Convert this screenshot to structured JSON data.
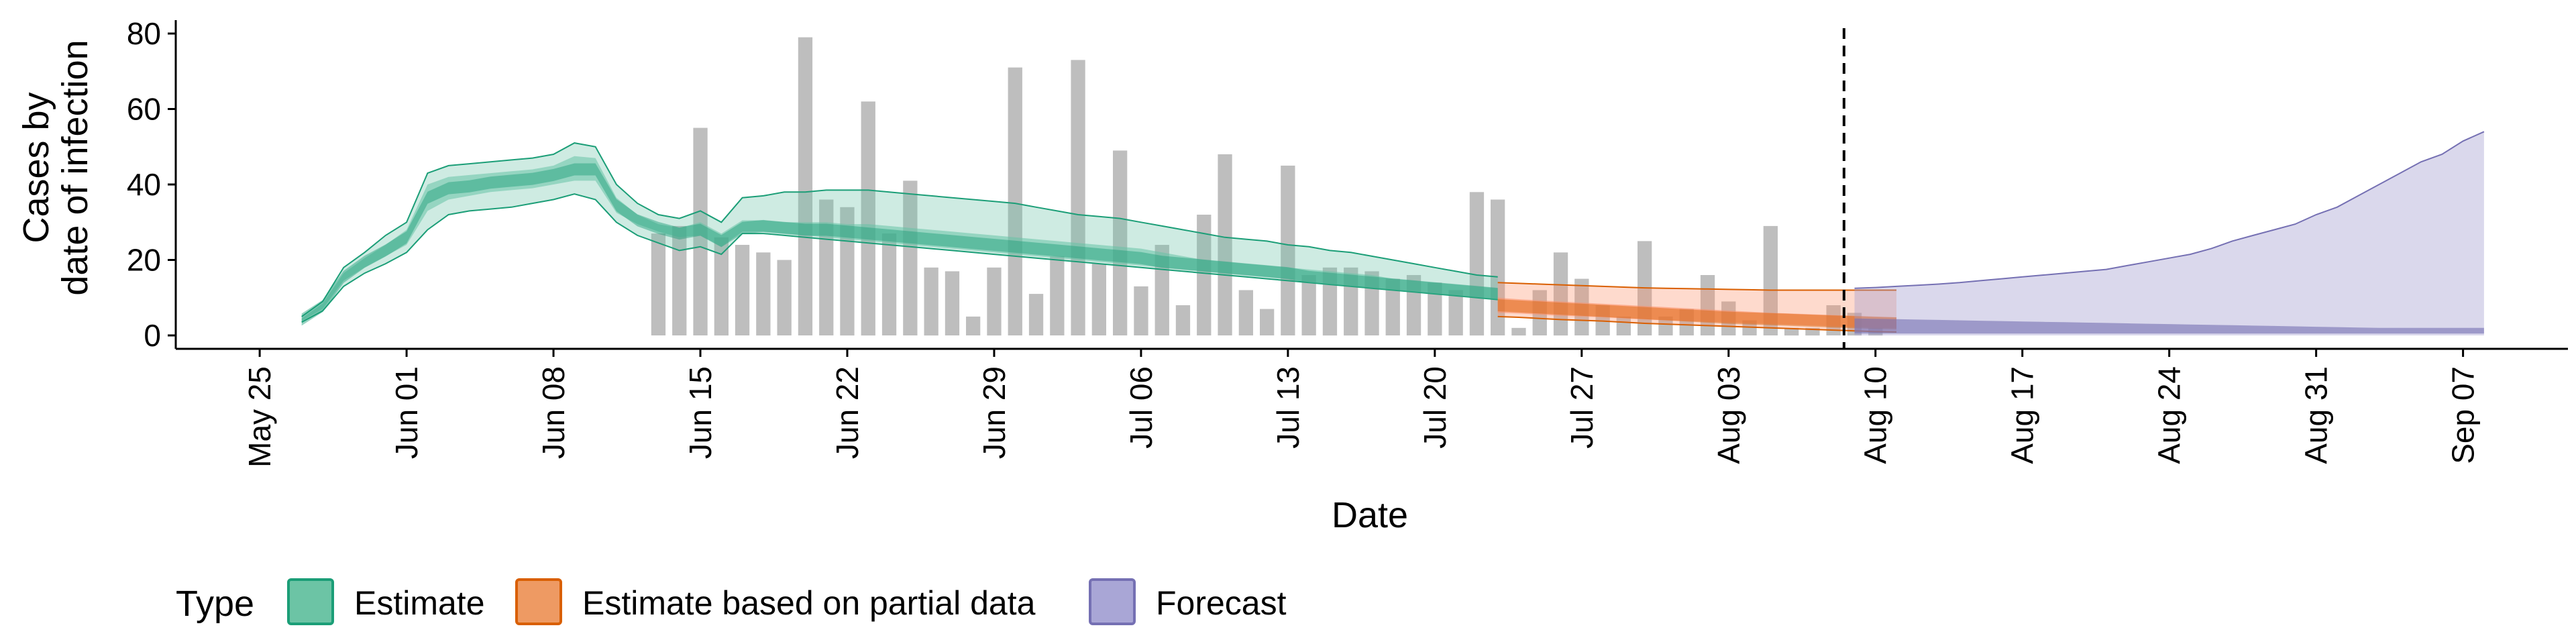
{
  "chart_data": {
    "type": "bar+area",
    "xlabel": "Date",
    "ylabel": [
      "Cases by",
      "date of infection"
    ],
    "ylim": [
      0,
      80
    ],
    "yticks": [
      0,
      20,
      40,
      60,
      80
    ],
    "xlim": [
      "2020-05-21",
      "2020-09-12"
    ],
    "xticks": [
      "2020-05-25",
      "2020-06-01",
      "2020-06-08",
      "2020-06-15",
      "2020-06-22",
      "2020-06-29",
      "2020-07-06",
      "2020-07-13",
      "2020-07-20",
      "2020-07-27",
      "2020-08-03",
      "2020-08-10",
      "2020-08-17",
      "2020-08-24",
      "2020-08-31",
      "2020-09-07"
    ],
    "xtick_labels": [
      "May 25",
      "Jun 01",
      "Jun 08",
      "Jun 15",
      "Jun 22",
      "Jun 29",
      "Jul 06",
      "Jul 13",
      "Jul 20",
      "Jul 27",
      "Aug 03",
      "Aug 10",
      "Aug 17",
      "Aug 24",
      "Aug 31",
      "Sep 07"
    ],
    "forecast_boundary": "2020-08-08",
    "grid": false,
    "legend": {
      "title": "Type",
      "placement": "bottom",
      "entries": [
        "Estimate",
        "Estimate based on partial data",
        "Forecast"
      ]
    },
    "bars": {
      "color": "#bebebe",
      "start_date": "2020-06-13",
      "values": [
        27,
        29,
        55,
        26,
        24,
        22,
        20,
        79,
        36,
        34,
        62,
        27,
        41,
        18,
        17,
        5,
        18,
        71,
        11,
        21,
        73,
        19,
        49,
        13,
        24,
        8,
        32,
        48,
        12,
        7,
        45,
        16,
        18,
        18,
        17,
        15,
        16,
        14,
        12,
        38,
        36,
        2,
        12,
        22,
        15,
        8,
        5,
        25,
        5,
        7,
        16,
        9,
        4,
        29,
        2,
        2,
        8,
        6,
        2
      ]
    },
    "series": [
      {
        "name": "Estimate",
        "color": "#1b9e77",
        "fill": "#66c2a5",
        "x_start": "2020-05-27",
        "outer_lower": [
          3.5,
          6.5,
          13,
          16.5,
          19,
          22,
          28,
          32,
          33,
          33.5,
          34,
          35,
          36,
          37.5,
          36,
          30,
          26.5,
          24.5,
          22.5,
          23.5,
          21.5,
          27,
          27,
          26.5,
          26,
          25.5,
          25,
          24.5,
          24,
          23.5,
          23,
          22.5,
          22,
          21.5,
          21,
          20.5,
          20,
          19.5,
          19,
          18.5,
          18,
          17.5,
          17,
          16.5,
          16,
          15.5,
          15,
          14.5,
          14,
          13.5,
          13,
          12.5,
          12,
          11.5,
          11,
          10.5,
          10,
          9.5
        ],
        "outer_upper": [
          5,
          9,
          18,
          22,
          26.5,
          30,
          43,
          45,
          45.5,
          46,
          46.5,
          47,
          48,
          51,
          50,
          40,
          35,
          32,
          31,
          33,
          30,
          36.5,
          37,
          38,
          38,
          38.5,
          38.5,
          38.5,
          38,
          37.5,
          37,
          36.5,
          36,
          35.5,
          35,
          34,
          33,
          32,
          31.5,
          31,
          30,
          29,
          28,
          27,
          26,
          25.5,
          25,
          24,
          23.5,
          22.5,
          22,
          21,
          20,
          19,
          18,
          17,
          16,
          15.5
        ],
        "inner_lower": [
          3.8,
          7,
          14.5,
          18,
          21,
          24,
          33,
          36,
          37,
          38,
          38.5,
          39,
          40,
          41,
          41,
          32.5,
          29.5,
          27.5,
          26,
          26.5,
          23.5,
          27.5,
          27.5,
          27,
          26.5,
          26,
          25.5,
          25,
          24.5,
          24,
          23.5,
          23,
          22.5,
          22,
          21.5,
          21,
          20.5,
          20,
          19.5,
          19,
          18.5,
          18,
          17.5,
          17,
          16.5,
          16,
          15.5,
          15,
          14,
          13.5,
          13,
          12.5,
          12,
          11.5,
          11,
          10.5,
          10,
          9.5
        ],
        "inner_upper": [
          4.5,
          8.5,
          16.5,
          20.5,
          24,
          28,
          40,
          42,
          42.5,
          43,
          43.5,
          44,
          45,
          47.5,
          47,
          36.5,
          32,
          29.5,
          28.5,
          30,
          27,
          30.5,
          30.5,
          30,
          30,
          30,
          29.5,
          29.5,
          29,
          28.5,
          28,
          27.5,
          27,
          26.5,
          26,
          25.5,
          25,
          24.5,
          24,
          23.5,
          23,
          22,
          21,
          20,
          19.5,
          19,
          18.5,
          18,
          17.5,
          17,
          16.5,
          16,
          15,
          14.5,
          14,
          13.5,
          13,
          12.5
        ],
        "median": [
          4.2,
          7.8,
          15.5,
          19.5,
          22.5,
          26,
          36.5,
          39,
          39.5,
          40.5,
          41,
          41.5,
          42.5,
          44,
          44,
          34.5,
          30.5,
          28.5,
          27,
          28,
          25,
          28.5,
          29,
          28.5,
          28,
          28,
          27.5,
          27,
          26.5,
          26,
          25.5,
          25,
          24.5,
          24,
          23.5,
          23,
          22.5,
          22,
          21.5,
          21,
          20.5,
          19.5,
          19,
          18.5,
          18,
          17.5,
          17,
          16.5,
          15.5,
          15,
          14.5,
          14,
          13.5,
          13,
          12.5,
          12,
          11.5,
          11
        ]
      },
      {
        "name": "Estimate based on partial data",
        "color": "#d95f02",
        "fill": "#fc8d62",
        "x_start": "2020-07-23",
        "outer_lower": [
          5,
          4.8,
          4.5,
          4.2,
          4,
          3.8,
          3.5,
          3.2,
          3,
          2.8,
          2.6,
          2.4,
          2.2,
          2,
          1.8,
          1.6,
          1.4,
          1.2,
          1,
          0.9
        ],
        "outer_upper": [
          14,
          13.8,
          13.6,
          13.4,
          13.2,
          13,
          12.8,
          12.6,
          12.5,
          12.4,
          12.3,
          12.2,
          12.1,
          12,
          12,
          12,
          12,
          12,
          12,
          12
        ],
        "inner_lower": [
          6,
          5.8,
          5.5,
          5.2,
          5,
          4.8,
          4.5,
          4.2,
          4,
          3.8,
          3.6,
          3.4,
          3.2,
          3,
          2.8,
          2.6,
          2.4,
          2.2,
          2,
          1.9
        ],
        "inner_upper": [
          10,
          9.6,
          9.3,
          9,
          8.7,
          8.4,
          8.1,
          7.8,
          7.5,
          7.2,
          6.9,
          6.6,
          6.3,
          6,
          5.8,
          5.6,
          5.4,
          5.2,
          5,
          4.8
        ],
        "median": [
          8,
          7.7,
          7.4,
          7.1,
          6.8,
          6.5,
          6.2,
          5.9,
          5.6,
          5.3,
          5,
          4.7,
          4.5,
          4.3,
          4.1,
          3.9,
          3.7,
          3.5,
          3.3,
          3.2
        ]
      },
      {
        "name": "Forecast",
        "color": "#7570b3",
        "fill": "#8da0cb",
        "x_start": "2020-08-09",
        "outer_lower": [
          0,
          0,
          0,
          0,
          0,
          0,
          0,
          0,
          0,
          0,
          0,
          0,
          0,
          0,
          0,
          0,
          0,
          0,
          0,
          0,
          0,
          0,
          0,
          0,
          0,
          0,
          0,
          0,
          0,
          0,
          0
        ],
        "outer_upper": [
          12.5,
          12.7,
          13,
          13.3,
          13.6,
          14,
          14.5,
          15,
          15.5,
          16,
          16.5,
          17,
          17.5,
          18.5,
          19.5,
          20.5,
          21.5,
          23,
          25,
          26.5,
          28,
          29.5,
          32,
          34,
          37,
          40,
          43,
          46,
          48,
          51.5,
          54
        ],
        "inner_lower": [
          0.5,
          0.5,
          0.5,
          0.5,
          0.5,
          0.5,
          0.5,
          0.5,
          0.5,
          0.5,
          0.5,
          0.5,
          0.5,
          0.5,
          0.5,
          0.5,
          0.5,
          0.5,
          0.5,
          0.5,
          0.5,
          0.5,
          0.5,
          0.5,
          0.5,
          0.5,
          0.5,
          0.5,
          0.5,
          0.5,
          0.5
        ],
        "inner_upper": [
          4.5,
          4.4,
          4.3,
          4.2,
          4.1,
          4,
          3.9,
          3.8,
          3.7,
          3.6,
          3.5,
          3.4,
          3.3,
          3.2,
          3.1,
          3,
          2.9,
          2.8,
          2.7,
          2.6,
          2.5,
          2.4,
          2.3,
          2.2,
          2.1,
          2,
          2,
          2,
          2,
          2,
          2
        ]
      }
    ]
  }
}
